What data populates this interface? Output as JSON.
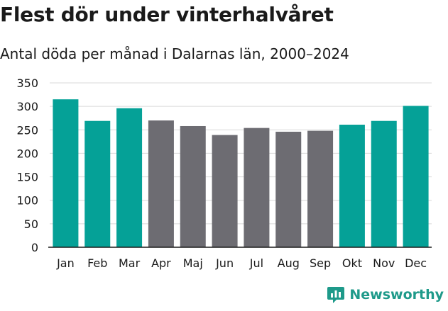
{
  "header": {
    "title": "Flest dör under vinterhalvåret",
    "subtitle": "Antal döda per månad i Dalarnas län, 2000–2024"
  },
  "brand": {
    "name": "Newsworthy",
    "color": "#1e9a8a"
  },
  "colors": {
    "highlight": "#05a197",
    "default": "#6d6c72",
    "grid": "#d9d9d9",
    "axis": "#1a1a1a"
  },
  "chart_data": {
    "type": "bar",
    "title": "Flest dör under vinterhalvåret",
    "subtitle": "Antal döda per månad i Dalarnas län, 2000–2024",
    "categories": [
      "Jan",
      "Feb",
      "Mar",
      "Apr",
      "Maj",
      "Jun",
      "Jul",
      "Aug",
      "Sep",
      "Okt",
      "Nov",
      "Dec"
    ],
    "values": [
      315,
      269,
      296,
      270,
      258,
      239,
      254,
      246,
      248,
      261,
      269,
      301
    ],
    "highlight": [
      true,
      true,
      true,
      false,
      false,
      false,
      false,
      false,
      false,
      true,
      true,
      true
    ],
    "yticks": [
      0,
      50,
      100,
      150,
      200,
      250,
      300,
      350
    ],
    "ylim": [
      0,
      350
    ],
    "xlabel": "",
    "ylabel": "",
    "grid": true
  }
}
